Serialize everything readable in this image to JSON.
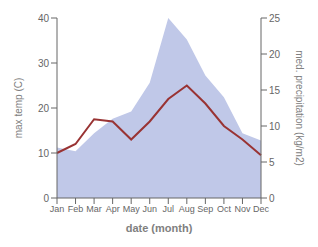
{
  "chart_data": {
    "type": "line",
    "categories": [
      "Jan",
      "Feb",
      "Mar",
      "Apr",
      "May",
      "Jun",
      "Jul",
      "Aug",
      "Sep",
      "Oct",
      "Nov",
      "Dec"
    ],
    "xlabel": "date (month)",
    "ylabel": "max temp (C)",
    "y2label": "med. precipitation (kg/m2)",
    "ylim": [
      0,
      40
    ],
    "yticks": [
      0,
      10,
      20,
      30,
      40
    ],
    "y2lim": [
      0,
      25
    ],
    "y2ticks": [
      0,
      5,
      10,
      15,
      20,
      25
    ],
    "grid": false,
    "series": [
      {
        "type": "area",
        "axis": "y2",
        "color": "#c0c8e8",
        "values": [
          7.0,
          6.5,
          9.0,
          11.0,
          12.0,
          16.0,
          25.0,
          22.0,
          17.0,
          14.0,
          9.0,
          8.0
        ]
      },
      {
        "type": "line",
        "color": "#993333",
        "values": [
          10.0,
          12.0,
          17.5,
          17.0,
          13.0,
          17.0,
          22.0,
          25.0,
          21.0,
          16.0,
          13.0,
          9.5
        ]
      }
    ]
  }
}
